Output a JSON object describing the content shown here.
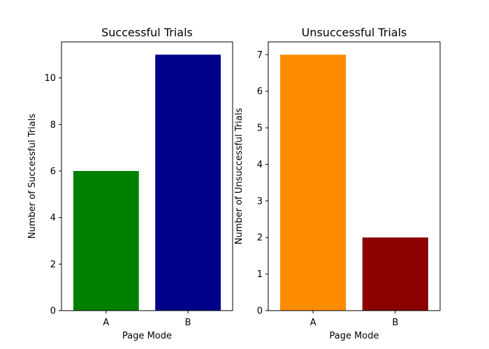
{
  "chart_data": [
    {
      "type": "bar",
      "title": "Successful Trials",
      "xlabel": "Page Mode",
      "ylabel": "Number of Successful Trials",
      "categories": [
        "A",
        "B"
      ],
      "values": [
        6,
        11
      ],
      "colors": [
        "#008000",
        "#00008b"
      ],
      "ylim": [
        0,
        11.55
      ],
      "yticks": [
        0,
        2,
        4,
        6,
        8,
        10
      ],
      "grid": false,
      "legend": false
    },
    {
      "type": "bar",
      "title": "Unsuccessful Trials",
      "xlabel": "Page Mode",
      "ylabel": "Number of Unsuccessful Trials",
      "categories": [
        "A",
        "B"
      ],
      "values": [
        7,
        2
      ],
      "colors": [
        "#ff8c00",
        "#8b0000"
      ],
      "ylim": [
        0,
        7.35
      ],
      "yticks": [
        0,
        1,
        2,
        3,
        4,
        5,
        6,
        7
      ],
      "grid": false,
      "legend": false
    }
  ]
}
